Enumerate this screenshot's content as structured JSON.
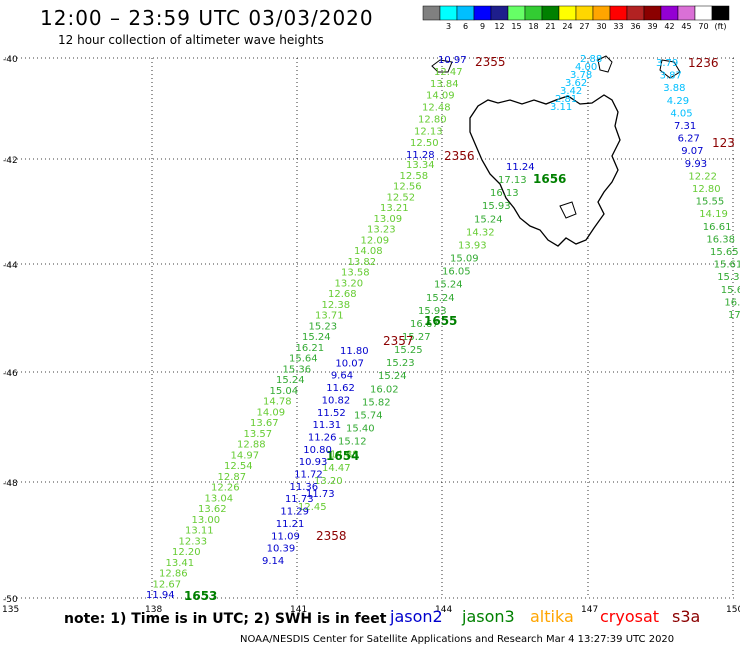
{
  "title": "12:00 – 23:59 UTC 03/03/2020",
  "subtitle": "12 hour collection of altimeter wave heights",
  "color_scale": [
    {
      "color": "#808080",
      "label": ""
    },
    {
      "color": "#00ffff",
      "label": "3"
    },
    {
      "color": "#00bfff",
      "label": "6"
    },
    {
      "color": "#0000ff",
      "label": "9"
    },
    {
      "color": "#1e1e8c",
      "label": "12"
    },
    {
      "color": "#66ff66",
      "label": "15"
    },
    {
      "color": "#33cc33",
      "label": "18"
    },
    {
      "color": "#008000",
      "label": "21"
    },
    {
      "color": "#ffff00",
      "label": "24"
    },
    {
      "color": "#ffd700",
      "label": "27"
    },
    {
      "color": "#ffa500",
      "label": "30"
    },
    {
      "color": "#ff0000",
      "label": "33"
    },
    {
      "color": "#b22222",
      "label": "36"
    },
    {
      "color": "#8b0000",
      "label": "39"
    },
    {
      "color": "#9400d3",
      "label": "42"
    },
    {
      "color": "#da70d6",
      "label": "45"
    },
    {
      "color": "#ffffff",
      "label": "70"
    },
    {
      "color": "#000000",
      "label": "(ft)"
    }
  ],
  "lat_labels": [
    "-40",
    "-42",
    "-44",
    "-46",
    "-48",
    "-50"
  ],
  "lon_labels": [
    "135",
    "138",
    "141",
    "144",
    "147",
    "150"
  ],
  "tracks": [
    {
      "time": "1653",
      "color": "#008000",
      "values": [
        "11.94",
        "12.67",
        "12.86",
        "13.41",
        "12.20",
        "12.33",
        "13.11",
        "13.00",
        "13.62",
        "13.04",
        "12.26",
        "12.87",
        "12.54",
        "14.97",
        "12.88",
        "13.57",
        "13.67",
        "14.09",
        "14.78",
        "15.04",
        "15.24",
        "15.36",
        "15.64",
        "16.21",
        "15.24",
        "15.23",
        "13.71",
        "12.38",
        "12.68",
        "13.20",
        "13.58",
        "13.82",
        "14.08",
        "12.09",
        "13.23",
        "13.09",
        "13.21",
        "12.52",
        "12.56",
        "12.58",
        "13.34"
      ]
    },
    {
      "time": "1654",
      "color": "#008000",
      "values": [
        "12.45",
        "11.73",
        "13.20",
        "14.47",
        "14.88",
        "15.12",
        "15.40",
        "15.74",
        "15.82",
        "16.02",
        "15.24",
        "15.23",
        "15.25",
        "15.27",
        "16.67",
        "15.93",
        "15.24",
        "15.24",
        "16.05",
        "15.09",
        "13.93",
        "14.32",
        "15.24",
        "15.93",
        "16.13",
        "17.13",
        "11.24"
      ]
    },
    {
      "time": "2356",
      "color": "#8b0000",
      "values": [
        "11.28",
        "12.50",
        "12.13",
        "12.80",
        "12.48",
        "14.09",
        "13.84",
        "12.47",
        "10.97"
      ]
    },
    {
      "time": "2358",
      "color": "#8b0000",
      "values": [
        "9.14",
        "10.39",
        "11.09",
        "11.21",
        "11.29",
        "11.73",
        "11.36",
        "11.72",
        "10.93",
        "10.80",
        "11.26",
        "11.31",
        "11.52",
        "10.82",
        "11.62",
        "9.64",
        "10.07",
        "11.80"
      ]
    },
    {
      "time": "1655",
      "color": "#008000",
      "values": []
    },
    {
      "time": "1656",
      "color": "#008000",
      "values": []
    },
    {
      "time": "2357",
      "color": "#8b0000",
      "values": []
    },
    {
      "time": "2355",
      "color": "#8b0000",
      "values": []
    },
    {
      "time": "1236",
      "color": "#8b0000",
      "values": [
        "3.79",
        "3.87",
        "3.88",
        "4.29",
        "4.05",
        "7.31",
        "6.27",
        "9.07",
        "9.93",
        "12.22",
        "12.80",
        "15.55",
        "14.19",
        "16.61",
        "16.38",
        "15.65",
        "15.61",
        "15.3",
        "15.6",
        "16.",
        "17."
      ]
    },
    {
      "time": "123",
      "color": "#8b0000",
      "values": []
    },
    {
      "time": "",
      "color": "#00bfff",
      "values": [
        "2.88",
        "4.00",
        "3.78",
        "3.62",
        "3.42",
        "2.81",
        "3.11"
      ]
    }
  ],
  "note": "note: 1) Time is in UTC; 2) SWH is in feet",
  "satellites": [
    {
      "name": "jason2",
      "color": "#0000cd"
    },
    {
      "name": "jason3",
      "color": "#008000"
    },
    {
      "name": "altika",
      "color": "#ffa500"
    },
    {
      "name": "cryosat",
      "color": "#ff0000"
    },
    {
      "name": "s3a",
      "color": "#8b0000"
    }
  ],
  "credit": "NOAA/NESDIS Center for Satellite Applications and Research   Mar  4 13:27:39 UTC 2020"
}
